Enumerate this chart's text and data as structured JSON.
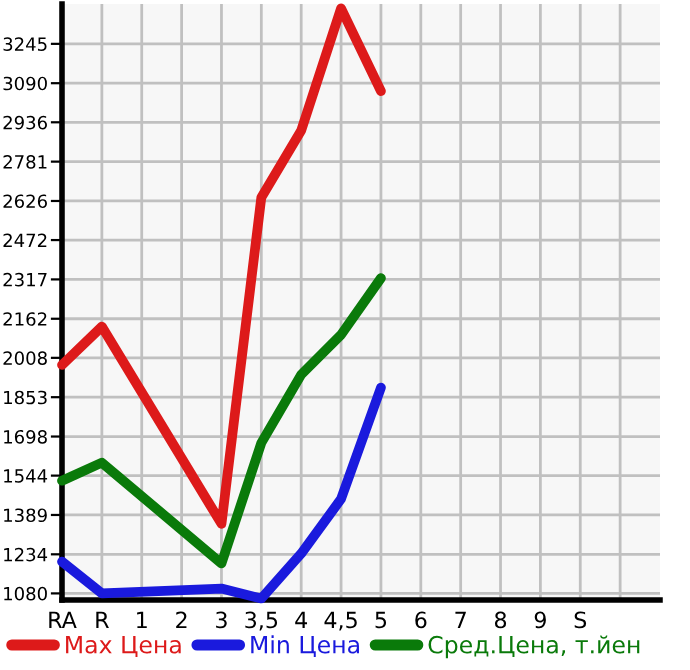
{
  "chart_data": {
    "type": "line",
    "categories": [
      "RA",
      "R",
      "1",
      "2",
      "3",
      "3,5",
      "4",
      "4,5",
      "5",
      "6",
      "7",
      "8",
      "9",
      "S",
      null
    ],
    "series": [
      {
        "name": "Max Цена",
        "color": "#dd1a1a",
        "values": [
          1980,
          2131,
          null,
          null,
          1354,
          2640,
          2904,
          3385,
          3059,
          null,
          null,
          null,
          null,
          null,
          null
        ]
      },
      {
        "name": "Min Цена",
        "color": "#1a1add",
        "values": [
          1205,
          1080,
          null,
          null,
          1099,
          1060,
          1237,
          1452,
          1891,
          null,
          null,
          null,
          null,
          null,
          null
        ]
      },
      {
        "name": "Сред.Цена, т.йен",
        "color": "#0a7a0a",
        "values": [
          1524,
          1595,
          null,
          null,
          1198,
          1673,
          1942,
          2099,
          2322,
          null,
          null,
          null,
          null,
          null,
          null
        ]
      }
    ],
    "ylim": [
      1054,
      3402
    ],
    "yticks": [
      1080,
      1234,
      1389,
      1544,
      1698,
      1853,
      2008,
      2162,
      2317,
      2472,
      2626,
      2781,
      2936,
      3090,
      3245
    ],
    "grid": true,
    "legend": "bottom",
    "marker": "none",
    "line_style": "solid"
  }
}
